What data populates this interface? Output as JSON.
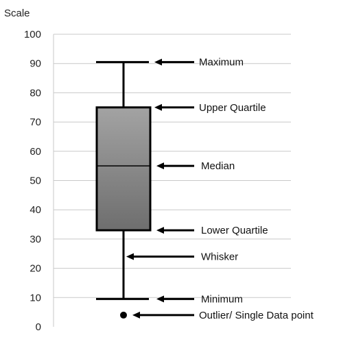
{
  "chart_data": {
    "type": "box",
    "ylabel": "Scale",
    "ylim": [
      0,
      100
    ],
    "yticks": [
      0,
      10,
      20,
      30,
      40,
      50,
      60,
      70,
      80,
      90,
      100
    ],
    "grid": true,
    "box": {
      "minimum": 9.5,
      "lower_quartile": 33,
      "median": 55,
      "upper_quartile": 75,
      "maximum": 90.5,
      "outliers": [
        4
      ]
    },
    "annotations": [
      {
        "label": "Maximum",
        "value": 90.5
      },
      {
        "label": "Upper Quartile",
        "value": 75
      },
      {
        "label": "Median",
        "value": 55
      },
      {
        "label": "Lower Quartile",
        "value": 33
      },
      {
        "label": "Whisker",
        "value": 24
      },
      {
        "label": "Minimum",
        "value": 9.5
      },
      {
        "label": "Outlier/ Single Data point",
        "value": 4
      }
    ],
    "colors": {
      "box_top": "#a3a3a3",
      "box_bottom": "#6e6e6e",
      "lines": "#000000",
      "grid": "#c8c8c8"
    }
  }
}
